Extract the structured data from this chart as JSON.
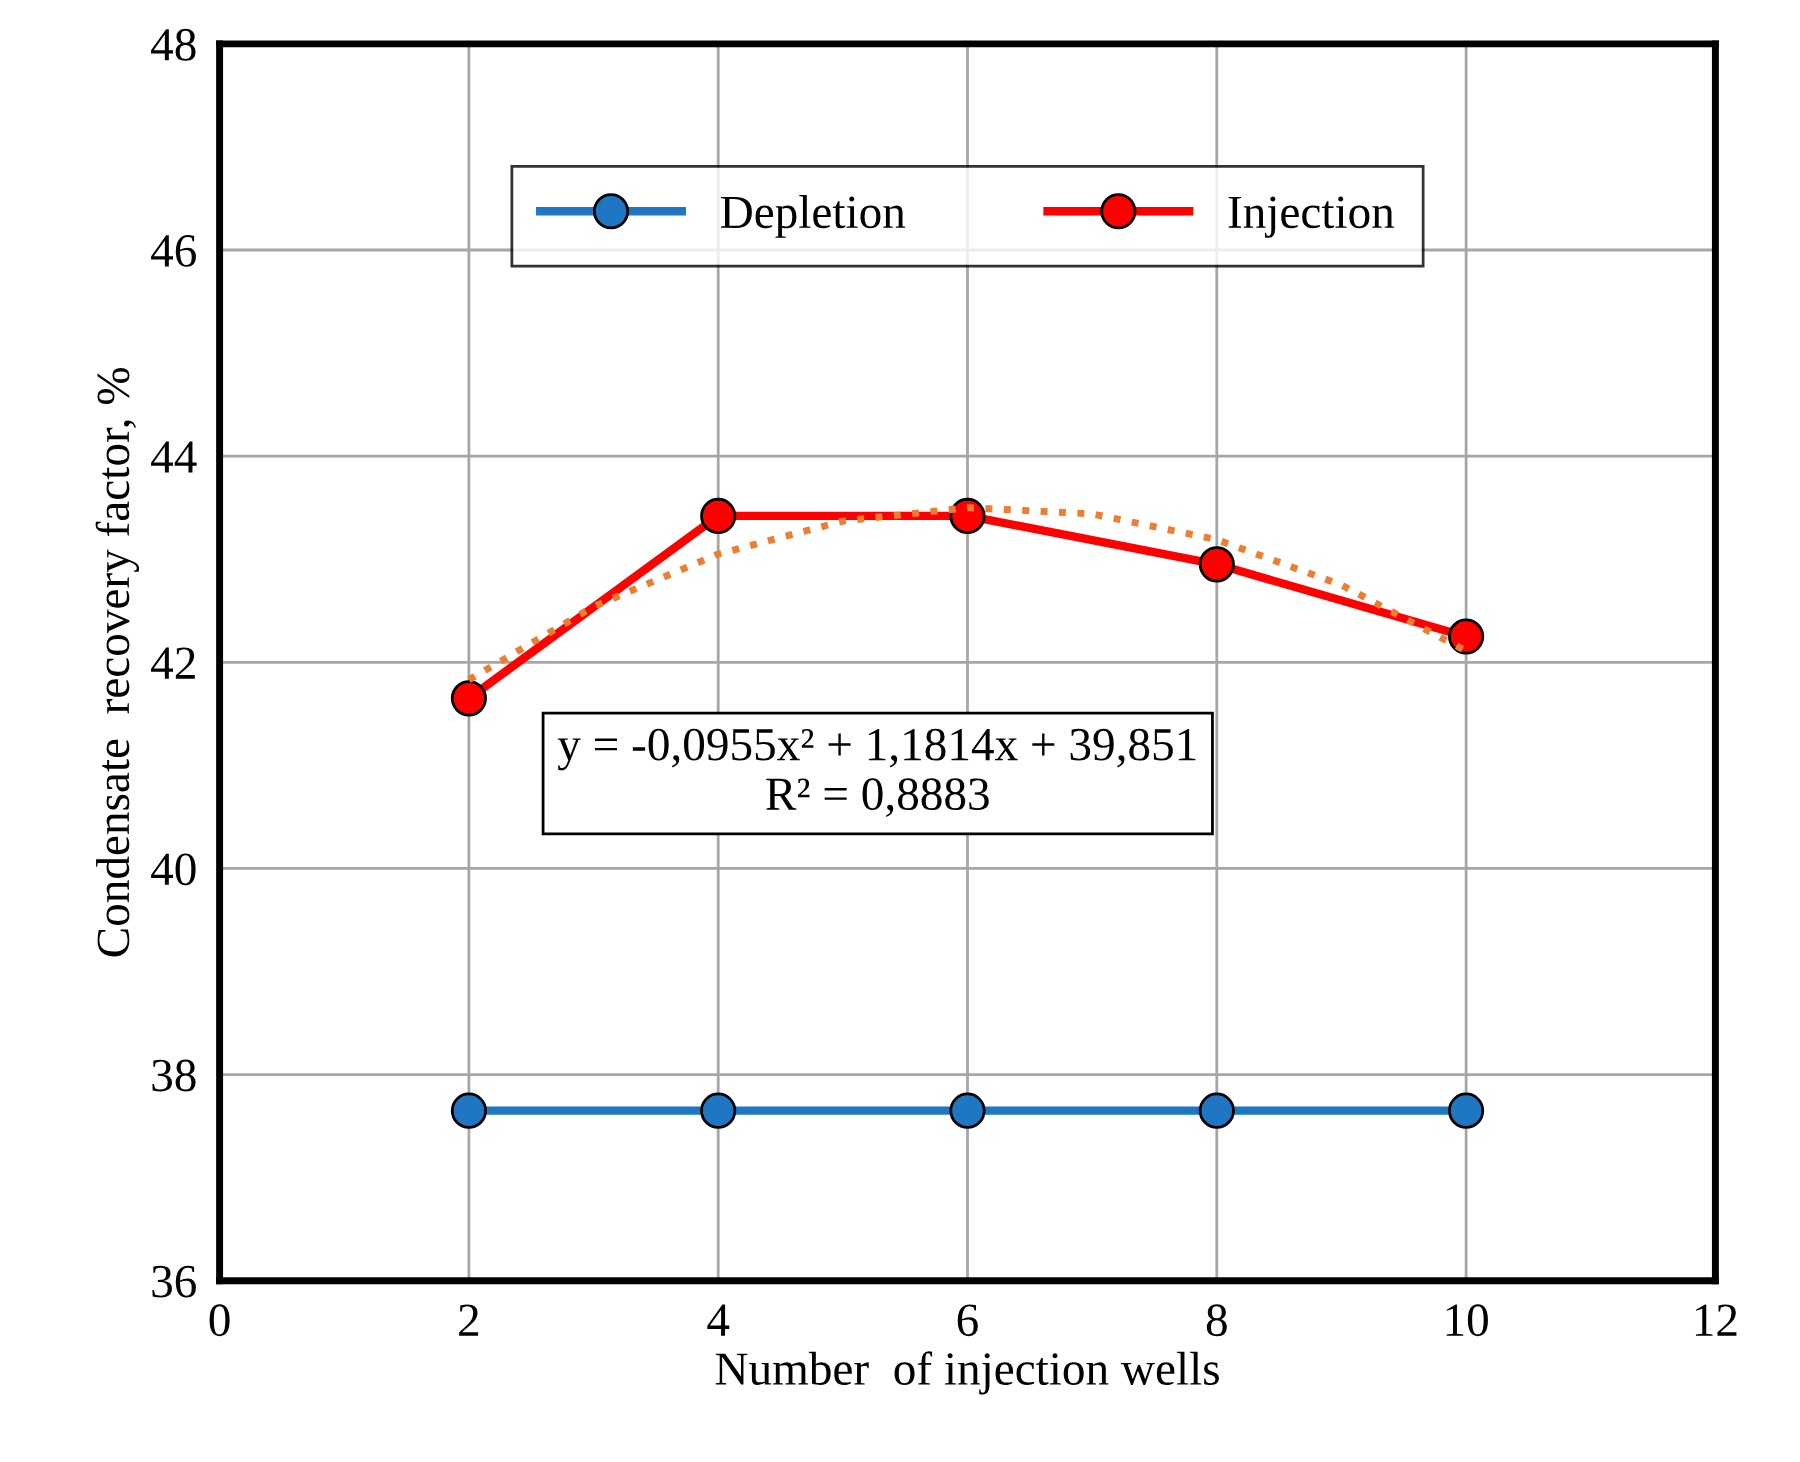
{
  "chart_data": {
    "type": "line",
    "xlabel": "Number  of injection wells",
    "ylabel": "Condensate  recovery factor, %",
    "xlim": [
      0,
      12
    ],
    "xticks": [
      0,
      2,
      4,
      6,
      8,
      10,
      12
    ],
    "ylim": [
      36,
      48
    ],
    "yticks": [
      36,
      38,
      40,
      42,
      44,
      46,
      48
    ],
    "grid": true,
    "legend": "top",
    "marker": "circle",
    "x": [
      2,
      4,
      6,
      8,
      10
    ],
    "series": [
      {
        "name": "Depletion",
        "color": "#1f77c4",
        "values": [
          37.65,
          37.65,
          37.65,
          37.65,
          37.65
        ]
      },
      {
        "name": "Injection",
        "color": "#ff0000",
        "values": [
          41.65,
          43.42,
          43.42,
          42.95,
          42.25
        ]
      },
      {
        "type": "line",
        "color": "#ed7d31",
        "line_style": "dotted",
        "marker": "none",
        "x": [
          2,
          3,
          4,
          5,
          6,
          7,
          8,
          9,
          10
        ],
        "values": [
          41.83,
          42.54,
          43.05,
          43.37,
          43.5,
          43.44,
          43.19,
          42.75,
          42.11
        ]
      }
    ],
    "annotations": [
      "y = -0,0955x² + 1,1814x + 39,851\nR² = 0,8883"
    ]
  }
}
